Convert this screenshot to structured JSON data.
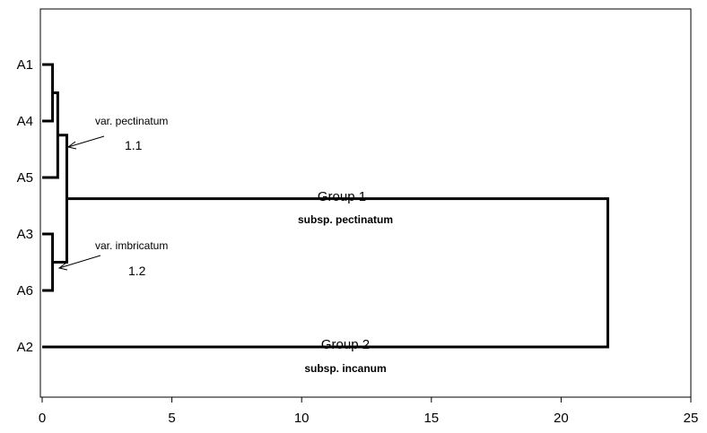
{
  "chart_data": {
    "type": "dendrogram",
    "xlim": [
      0,
      25
    ],
    "x_ticks": [
      0,
      5,
      10,
      15,
      20,
      25
    ],
    "leaves": [
      "A1",
      "A4",
      "A5",
      "A3",
      "A6",
      "A2"
    ],
    "merges": [
      {
        "id": "m1",
        "left": "A1",
        "right": "A4",
        "height": 0.4
      },
      {
        "id": "m2",
        "left": "A3",
        "right": "A6",
        "height": 0.4
      },
      {
        "id": "m3",
        "left": "m1",
        "right": "A5",
        "height": 0.6
      },
      {
        "id": "m4",
        "left": "m3",
        "right": "m2",
        "height": 0.95
      },
      {
        "id": "m5",
        "left": "m4",
        "right": "A2",
        "height": 21.8
      }
    ],
    "annotations": [
      {
        "label": "var. pectinatum",
        "number": "1.1"
      },
      {
        "label": "var. imbricatum",
        "number": "1.2"
      }
    ],
    "groups": [
      {
        "name": "Group 1",
        "subspecies": "subsp. pectinatum"
      },
      {
        "name": "Group 2",
        "subspecies": "subsp. incanum"
      }
    ]
  },
  "colors": {
    "line": "#000000",
    "background": "#ffffff"
  }
}
